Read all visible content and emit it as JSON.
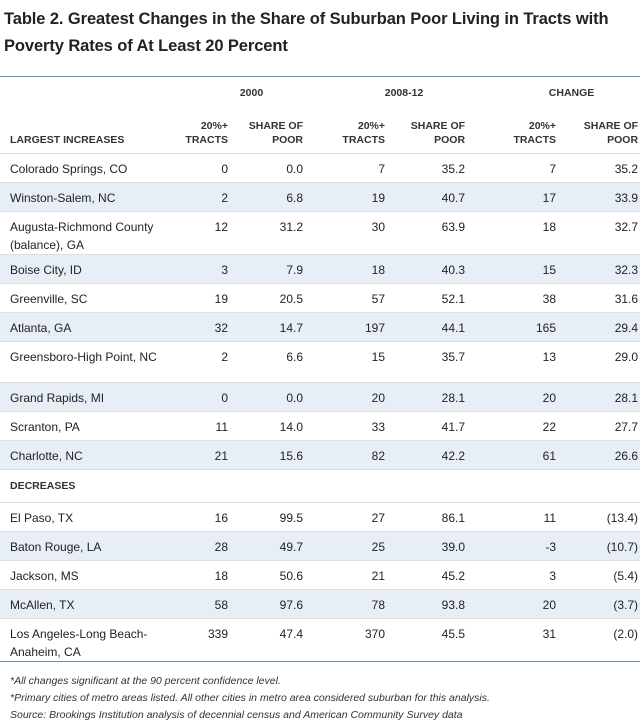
{
  "title": "Table 2. Greatest Changes in the Share of Suburban Poor Living in Tracts with Poverty Rates of At Least 20 Percent",
  "groups": [
    "2000",
    "2008-12",
    "CHANGE"
  ],
  "sub_headers": {
    "label": "LARGEST INCREASES",
    "tracts": [
      "20%+",
      "TRACTS"
    ],
    "share": [
      "SHARE OF",
      "POOR"
    ]
  },
  "increases": [
    {
      "name": "Colorado Springs, CO",
      "v": [
        "0",
        "0.0",
        "7",
        "35.2",
        "7",
        "35.2"
      ]
    },
    {
      "name": "Winston-Salem, NC",
      "v": [
        "2",
        "6.8",
        "19",
        "40.7",
        "17",
        "33.9"
      ]
    },
    {
      "name": "Augusta-Richmond County (balance), GA",
      "v": [
        "12",
        "31.2",
        "30",
        "63.9",
        "18",
        "32.7"
      ]
    },
    {
      "name": "Boise City, ID",
      "v": [
        "3",
        "7.9",
        "18",
        "40.3",
        "15",
        "32.3"
      ]
    },
    {
      "name": "Greenville, SC",
      "v": [
        "19",
        "20.5",
        "57",
        "52.1",
        "38",
        "31.6"
      ]
    },
    {
      "name": "Atlanta, GA",
      "v": [
        "32",
        "14.7",
        "197",
        "44.1",
        "165",
        "29.4"
      ]
    },
    {
      "name": "Greensboro-High Point, NC",
      "v": [
        "2",
        "6.6",
        "15",
        "35.7",
        "13",
        "29.0"
      ]
    },
    {
      "name": "Grand Rapids, MI",
      "v": [
        "0",
        "0.0",
        "20",
        "28.1",
        "20",
        "28.1"
      ]
    },
    {
      "name": "Scranton, PA",
      "v": [
        "11",
        "14.0",
        "33",
        "41.7",
        "22",
        "27.7"
      ]
    },
    {
      "name": "Charlotte, NC",
      "v": [
        "21",
        "15.6",
        "82",
        "42.2",
        "61",
        "26.6"
      ]
    }
  ],
  "decreases_label": "DECREASES",
  "decreases": [
    {
      "name": "El Paso, TX",
      "v": [
        "16",
        "99.5",
        "27",
        "86.1",
        "11",
        "(13.4)"
      ]
    },
    {
      "name": "Baton Rouge, LA",
      "v": [
        "28",
        "49.7",
        "25",
        "39.0",
        "-3",
        "(10.7)"
      ]
    },
    {
      "name": "Jackson, MS",
      "v": [
        "18",
        "50.6",
        "21",
        "45.2",
        "3",
        "(5.4)"
      ]
    },
    {
      "name": "McAllen, TX",
      "v": [
        "58",
        "97.6",
        "78",
        "93.8",
        "20",
        "(3.7)"
      ]
    },
    {
      "name": "Los Angeles-Long Beach-Anaheim, CA",
      "v": [
        "339",
        "47.4",
        "370",
        "45.5",
        "31",
        "(2.0)"
      ]
    }
  ],
  "notes": [
    "*All changes significant at the 90 percent confidence level.",
    "*Primary cities of metro areas listed. All other cities in metro area considered suburban for this analysis.",
    "Source: Brookings Institution analysis of decennial census and American Community Survey data"
  ]
}
